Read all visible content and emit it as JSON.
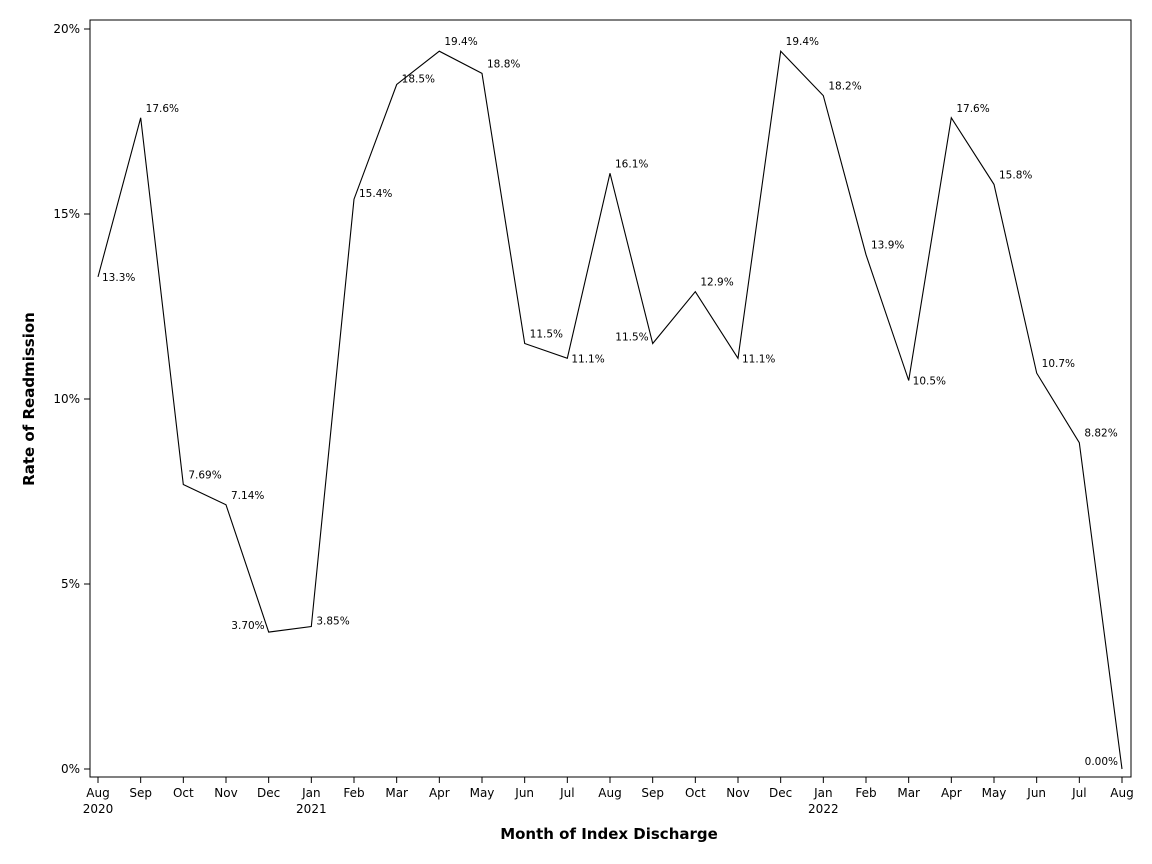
{
  "chart_data": {
    "type": "line",
    "xlabel": "Month of Index Discharge",
    "ylabel": "Rate of Readmission",
    "ylim": [
      0,
      20
    ],
    "y_ticks": [
      "0%",
      "5%",
      "10%",
      "15%",
      "20%"
    ],
    "grid": false,
    "legend": "none",
    "line_color": "#000000",
    "x": [
      "Aug 2020",
      "Sep 2020",
      "Oct 2020",
      "Nov 2020",
      "Dec 2020",
      "Jan 2021",
      "Feb 2021",
      "Mar 2021",
      "Apr 2021",
      "May 2021",
      "Jun 2021",
      "Jul 2021",
      "Aug 2021",
      "Sep 2021",
      "Oct 2021",
      "Nov 2021",
      "Dec 2021",
      "Jan 2022",
      "Feb 2022",
      "Mar 2022",
      "Apr 2022",
      "May 2022",
      "Jun 2022",
      "Jul 2022",
      "Aug 2022"
    ],
    "month_labels": [
      "Aug",
      "Sep",
      "Oct",
      "Nov",
      "Dec",
      "Jan",
      "Feb",
      "Mar",
      "Apr",
      "May",
      "Jun",
      "Jul",
      "Aug",
      "Sep",
      "Oct",
      "Nov",
      "Dec",
      "Jan",
      "Feb",
      "Mar",
      "Apr",
      "May",
      "Jun",
      "Jul",
      "Aug"
    ],
    "year_labels": [
      "2020",
      "",
      "",
      "",
      "",
      "2021",
      "",
      "",
      "",
      "",
      "",
      "",
      "",
      "",
      "",
      "",
      "",
      "2022",
      "",
      "",
      "",
      "",
      "",
      "",
      ""
    ],
    "values": [
      13.3,
      17.6,
      7.69,
      7.14,
      3.7,
      3.85,
      15.4,
      18.5,
      19.4,
      18.8,
      11.5,
      11.1,
      16.1,
      11.5,
      12.9,
      11.1,
      19.4,
      18.2,
      13.9,
      10.5,
      17.6,
      15.8,
      10.7,
      8.82,
      0.0
    ],
    "data_labels": [
      "13.3%",
      "17.6%",
      "7.69%",
      "7.14%",
      "3.70%",
      "3.85%",
      "15.4%",
      "18.5%",
      "19.4%",
      "18.8%",
      "11.5%",
      "11.1%",
      "16.1%",
      "11.5%",
      "12.9%",
      "11.1%",
      "19.4%",
      "18.2%",
      "13.9%",
      "10.5%",
      "17.6%",
      "15.8%",
      "10.7%",
      "8.82%",
      "0.00%"
    ]
  }
}
